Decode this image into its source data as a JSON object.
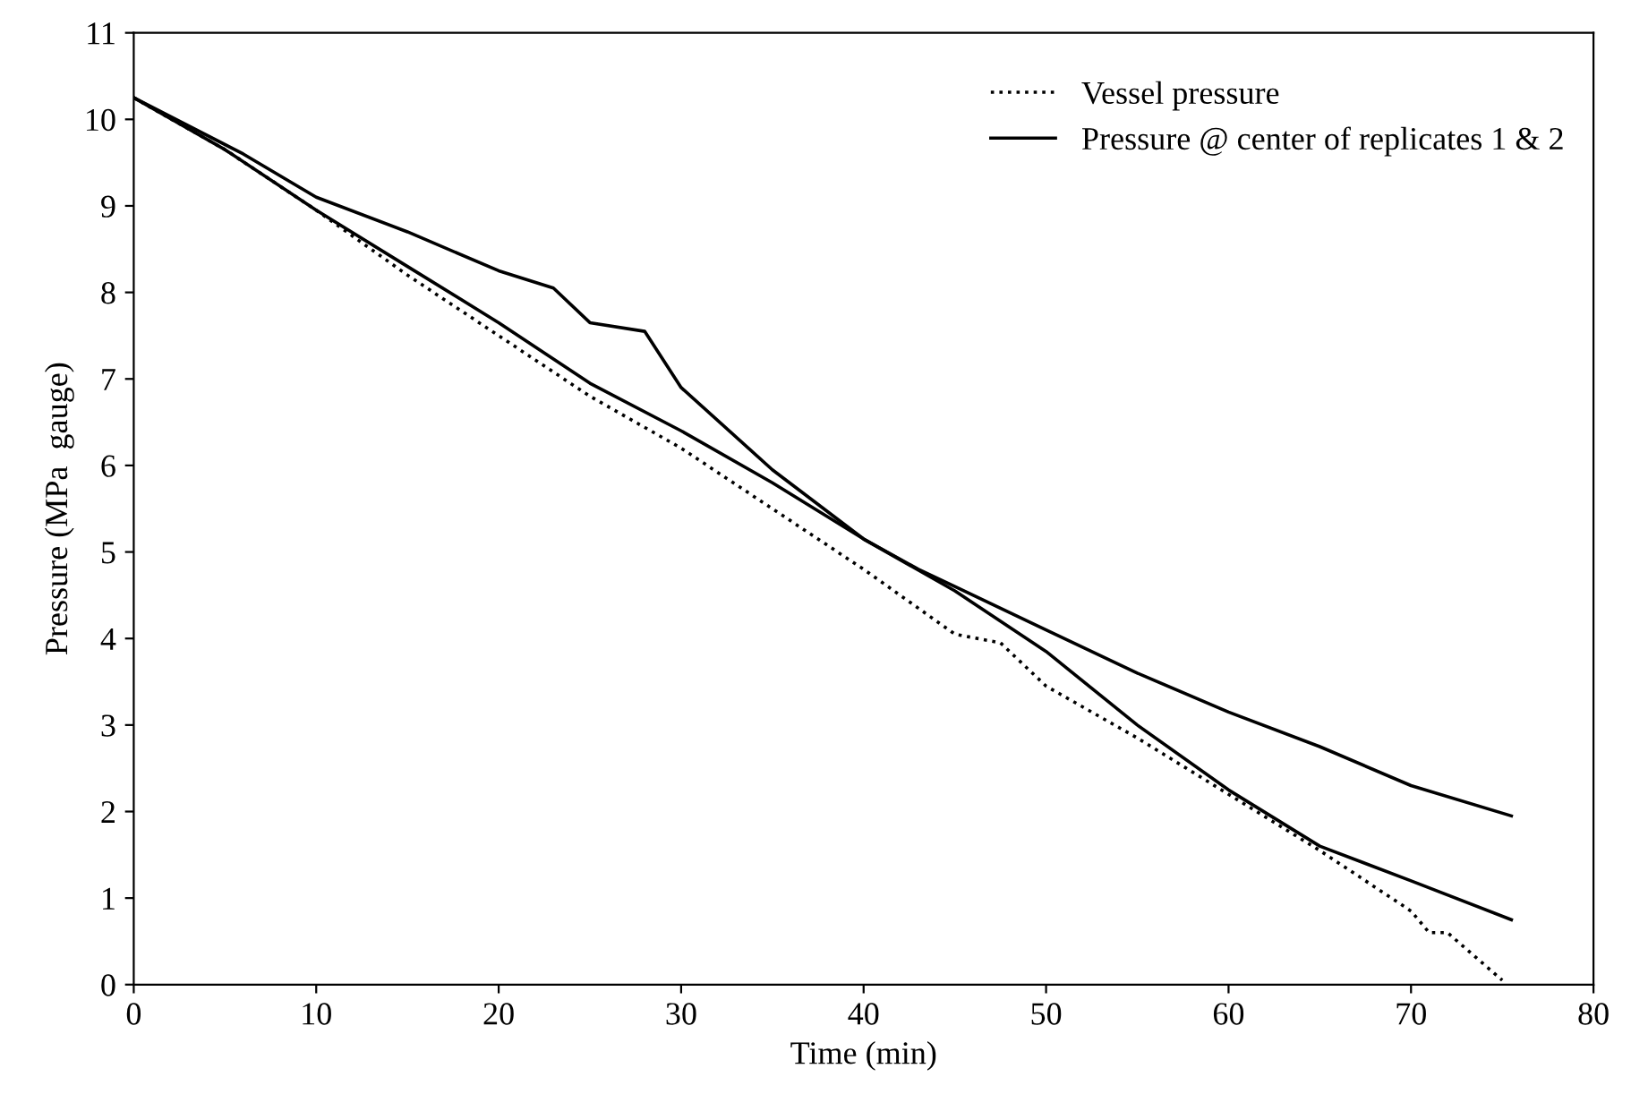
{
  "chart_data": {
    "type": "line",
    "xlabel": "Time (min)",
    "ylabel": "Pressure (MPa  gauge)",
    "xlim": [
      0,
      80
    ],
    "xticks": [
      0,
      10,
      20,
      30,
      40,
      50,
      60,
      70,
      80
    ],
    "ylim": [
      0,
      11
    ],
    "yticks": [
      0,
      1,
      2,
      3,
      4,
      5,
      6,
      7,
      8,
      9,
      10,
      11
    ],
    "grid": false,
    "legend": "top right",
    "marker": "none",
    "series": [
      {
        "name": "Vessel pressure",
        "color": "#000000",
        "line_style": "dotted",
        "x": [
          0,
          5,
          10,
          15,
          20,
          25,
          30,
          35,
          40,
          45,
          47.5,
          50,
          55,
          60,
          65,
          70,
          71,
          72,
          75
        ],
        "values": [
          10.25,
          9.65,
          8.95,
          8.2,
          7.5,
          6.8,
          6.2,
          5.5,
          4.8,
          4.05,
          3.95,
          3.45,
          2.85,
          2.2,
          1.55,
          0.85,
          0.6,
          0.6,
          0.05
        ]
      },
      {
        "name": "Pressure @ center of replicates 1 & 2",
        "color": "#000000",
        "line_style": "solid",
        "x": [
          0,
          6,
          10,
          15,
          20,
          23,
          25,
          28,
          30,
          35,
          40,
          43,
          45,
          50,
          55,
          60,
          65,
          70,
          75.5
        ],
        "values": [
          10.25,
          9.6,
          9.1,
          8.7,
          8.25,
          8.05,
          7.65,
          7.55,
          6.9,
          5.95,
          5.15,
          4.8,
          4.6,
          4.1,
          3.6,
          3.15,
          2.75,
          2.3,
          1.95
        ]
      },
      {
        "color": "#000000",
        "line_style": "solid",
        "x": [
          0,
          5,
          10,
          15,
          20,
          25,
          30,
          35,
          40,
          45,
          50,
          55,
          60,
          65,
          70,
          75.5
        ],
        "values": [
          10.25,
          9.65,
          8.95,
          8.3,
          7.65,
          6.95,
          6.4,
          5.8,
          5.15,
          4.55,
          3.85,
          3.0,
          2.25,
          1.6,
          1.2,
          0.75
        ]
      }
    ]
  }
}
